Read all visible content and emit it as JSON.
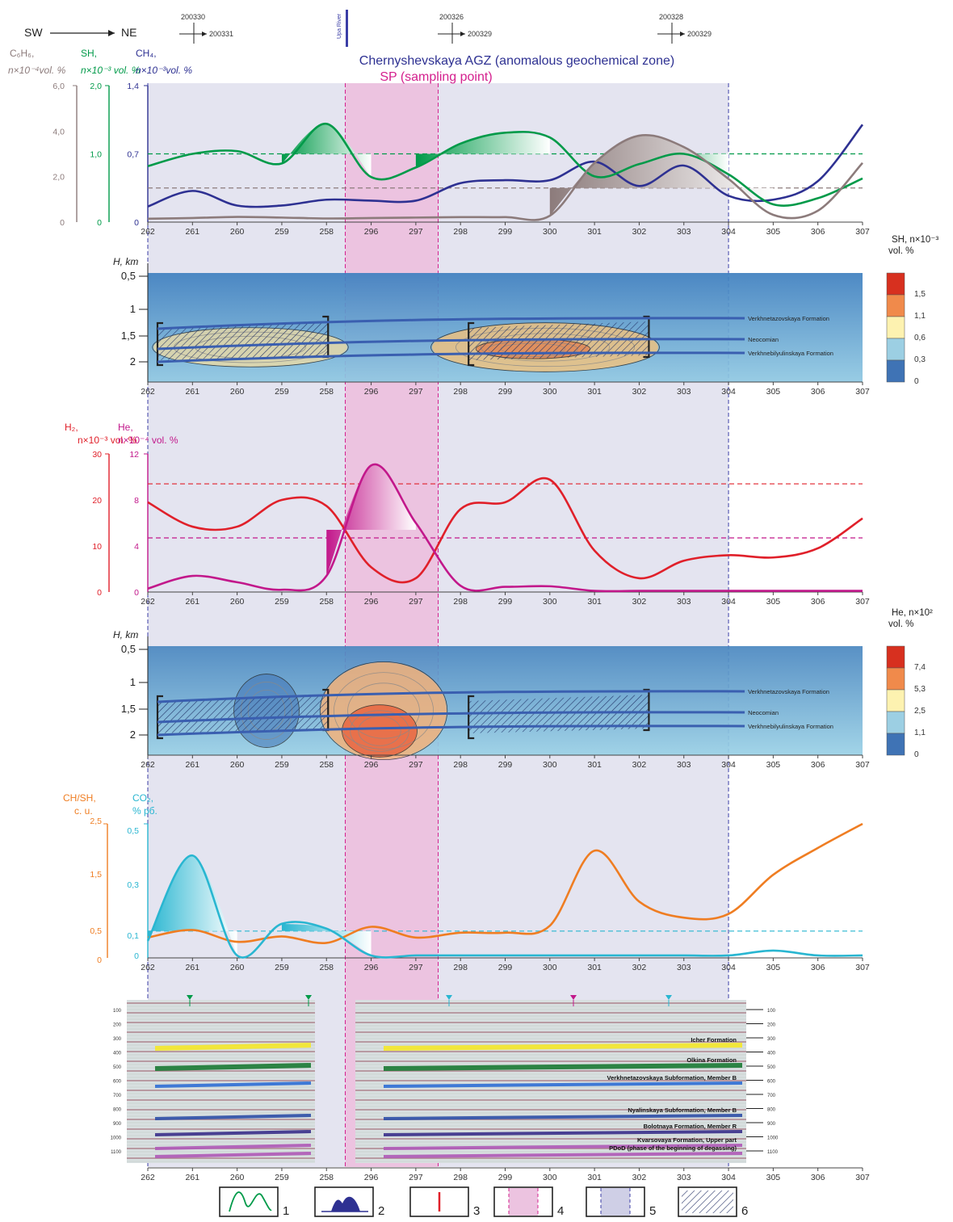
{
  "header": {
    "direction_sw": "SW",
    "direction_ne": "NE",
    "profiles": [
      {
        "a": "200330",
        "b": "200331",
        "at": 259.5
      },
      {
        "a": "200326",
        "b": "200329",
        "at": 297.5
      },
      {
        "a": "200328",
        "b": "200329",
        "at": 302.5
      }
    ],
    "river": "Upa River",
    "river_at": 258.2,
    "agz_title": "Chernyshevskaya AGZ (anomalous geochemical zone)",
    "sp_title": "SP (sampling point)"
  },
  "colors": {
    "ch4": "#2e3192",
    "sh": "#009a49",
    "c6h6": "#8c7b7b",
    "h2": "#e0202a",
    "he": "#c2188b",
    "chsh": "#ef7d22",
    "co2": "#29b6d1",
    "agz_fill": "#e4e4f0",
    "sp_fill": "#ecc3e0",
    "formation": "#3a5fb0"
  },
  "chart_data": [
    {
      "type": "line",
      "panel": "top",
      "x": [
        "262",
        "261",
        "260",
        "259",
        "258",
        "296",
        "297",
        "298",
        "299",
        "300",
        "301",
        "302",
        "303",
        "304",
        "305",
        "306",
        "307"
      ],
      "axes": [
        {
          "label": "C₆H₆,",
          "unit": "n×10⁻⁴vol. %",
          "ticks": [
            "6,0",
            "4,0",
            "2,0",
            "0"
          ],
          "ylim": [
            0,
            6
          ]
        },
        {
          "label": "SH,",
          "unit": "n×10⁻³ vol. %",
          "ticks": [
            "2,0",
            "1,0",
            "0"
          ],
          "ylim": [
            0,
            2
          ]
        },
        {
          "label": "CH₄,",
          "unit": "n×10⁻³vol. %",
          "ticks": [
            "1,4",
            "0,7",
            "0"
          ],
          "ylim": [
            0,
            1.4
          ]
        }
      ],
      "series": [
        {
          "name": "CH₄",
          "axis": 2,
          "values": [
            0.16,
            0.32,
            0.17,
            0.17,
            0.23,
            0.22,
            0.22,
            0.4,
            0.43,
            0.43,
            0.62,
            0.37,
            0.58,
            0.27,
            0.23,
            0.42,
            1.0
          ]
        },
        {
          "name": "SH",
          "axis": 1,
          "values": [
            0.82,
            1.0,
            1.04,
            0.86,
            1.44,
            0.66,
            0.8,
            1.15,
            1.31,
            1.24,
            0.67,
            0.85,
            1.0,
            0.7,
            0.26,
            0.35,
            0.64
          ]
        },
        {
          "name": "C₆H₆",
          "axis": 0,
          "values": [
            0.15,
            0.18,
            0.23,
            0.2,
            0.16,
            0.18,
            0.2,
            0.22,
            0.22,
            0.28,
            2.6,
            3.8,
            3.3,
            1.9,
            0.32,
            0.5,
            2.6
          ]
        }
      ],
      "thresholds": [
        {
          "axis": 1,
          "value": 1.0
        },
        {
          "axis": 0,
          "value": 1.5
        }
      ]
    },
    {
      "type": "heatmap",
      "panel": "sh-section",
      "title": "SH, n×10⁻³",
      "unit": "vol. %",
      "ylabel": "H, km",
      "yticks": [
        "0,5",
        "1",
        "1,5",
        "2"
      ],
      "x": [
        "262",
        "261",
        "260",
        "259",
        "258",
        "296",
        "297",
        "298",
        "299",
        "300",
        "301",
        "302",
        "303",
        "304",
        "305",
        "306",
        "307"
      ],
      "scale": [
        "1,5",
        "1,1",
        "0,6",
        "0,3",
        "0"
      ],
      "formations": [
        "Verkhnetazovskaya Formation",
        "Neocomian",
        "Verkhnebilyulinskaya Formation"
      ]
    },
    {
      "type": "line",
      "panel": "h2-he",
      "x": [
        "262",
        "261",
        "260",
        "259",
        "258",
        "296",
        "297",
        "298",
        "299",
        "300",
        "301",
        "302",
        "303",
        "304",
        "305",
        "306",
        "307"
      ],
      "axes": [
        {
          "label": "H₂,",
          "unit": "n×10⁻³ vol. %",
          "ticks": [
            "30",
            "20",
            "10",
            "0"
          ],
          "ylim": [
            0,
            30
          ]
        },
        {
          "label": "He,",
          "unit": "n×10⁻⁴ vol. %",
          "ticks": [
            "12",
            "8",
            "4",
            "0"
          ],
          "ylim": [
            0,
            12
          ]
        }
      ],
      "series": [
        {
          "name": "H₂",
          "axis": 0,
          "values": [
            19.5,
            14.2,
            14.2,
            20.0,
            18.7,
            5.4,
            3.0,
            18.0,
            19.5,
            24.4,
            9.0,
            3.0,
            6.8,
            8.0,
            7.5,
            9.5,
            16.0
          ]
        },
        {
          "name": "He",
          "axis": 1,
          "values": [
            0.3,
            1.4,
            0.85,
            0.2,
            1.4,
            11.0,
            6.0,
            0.55,
            0.45,
            0.5,
            0.1,
            0.1,
            0.1,
            0.1,
            0.1,
            0.1,
            0.1
          ]
        }
      ],
      "thresholds": [
        {
          "axis": 0,
          "value": 23.5
        },
        {
          "axis": 1,
          "value": 4.7
        }
      ]
    },
    {
      "type": "heatmap",
      "panel": "he-section",
      "title": "He, n×10²",
      "unit": "vol. %",
      "ylabel": "H, km",
      "yticks": [
        "0,5",
        "1",
        "1,5",
        "2"
      ],
      "x": [
        "262",
        "261",
        "260",
        "259",
        "258",
        "296",
        "297",
        "298",
        "299",
        "300",
        "301",
        "302",
        "303",
        "304",
        "305",
        "306",
        "307"
      ],
      "scale": [
        "7,4",
        "5,3",
        "2,5",
        "1,1",
        "0"
      ],
      "formations": [
        "Verkhnetazovskaya Formation",
        "Neocomian",
        "Verkhnebilyulinskaya Formation"
      ]
    },
    {
      "type": "line",
      "panel": "chsh-co2",
      "x": [
        "262",
        "261",
        "260",
        "259",
        "258",
        "296",
        "297",
        "298",
        "299",
        "300",
        "301",
        "302",
        "303",
        "304",
        "305",
        "306",
        "307"
      ],
      "axes": [
        {
          "label": "CH/SH,",
          "unit": "c. u.",
          "ticks": [
            "2,5",
            "1,5",
            "0,5",
            "0"
          ],
          "ylim": [
            0,
            2.5
          ]
        },
        {
          "label": "CO₂,",
          "unit": "% рб.",
          "ticks": [
            "0,5",
            "0,3",
            "0,1",
            "0"
          ],
          "ylim": [
            0,
            0.55
          ]
        }
      ],
      "series": [
        {
          "name": "CH/SH",
          "axis": 0,
          "values": [
            0.38,
            0.52,
            0.3,
            0.4,
            0.28,
            0.58,
            0.38,
            0.47,
            0.47,
            0.6,
            2.0,
            1.05,
            0.75,
            0.82,
            1.55,
            2.05,
            2.5
          ]
        },
        {
          "name": "CO₂",
          "axis": 1,
          "values": [
            0.07,
            0.42,
            0.01,
            0.14,
            0.12,
            0.01,
            0.01,
            0.01,
            0.01,
            0.01,
            0.01,
            0.01,
            0.01,
            0.01,
            0.03,
            0.01,
            0.01
          ]
        }
      ],
      "thresholds": [
        {
          "axis": 1,
          "value": 0.11
        }
      ]
    },
    {
      "type": "table",
      "panel": "seismic",
      "x": [
        "262",
        "261",
        "260",
        "259",
        "258",
        "296",
        "297",
        "298",
        "299",
        "300",
        "301",
        "302",
        "303",
        "304",
        "305",
        "306",
        "307"
      ],
      "depth_ticks": [
        "100",
        "200",
        "300",
        "400",
        "500",
        "600",
        "700",
        "800",
        "900",
        "1000",
        "1100"
      ],
      "horizons": [
        {
          "name": "Icher Formation",
          "color": "#f5e82a"
        },
        {
          "name": "Olkina Formation",
          "color": "#1a7a34"
        },
        {
          "name": "Verkhnetazovskaya Subformation, Member B",
          "color": "#2f6fd6"
        },
        {
          "name": "Nyalinskaya Subformation, Member B",
          "color": "#2e4fa8"
        },
        {
          "name": "Bolotnaya Formation, Member R",
          "color": "#3a2f8a"
        },
        {
          "name": "Kvarsovaya Formation, Upper part",
          "color": "#b05ab8"
        },
        {
          "name": "PDoD (phase of the beginning of degassing)",
          "color": "#b05ab8"
        }
      ]
    }
  ],
  "legend": {
    "items": [
      "1",
      "2",
      "3",
      "4",
      "5",
      "6"
    ]
  }
}
